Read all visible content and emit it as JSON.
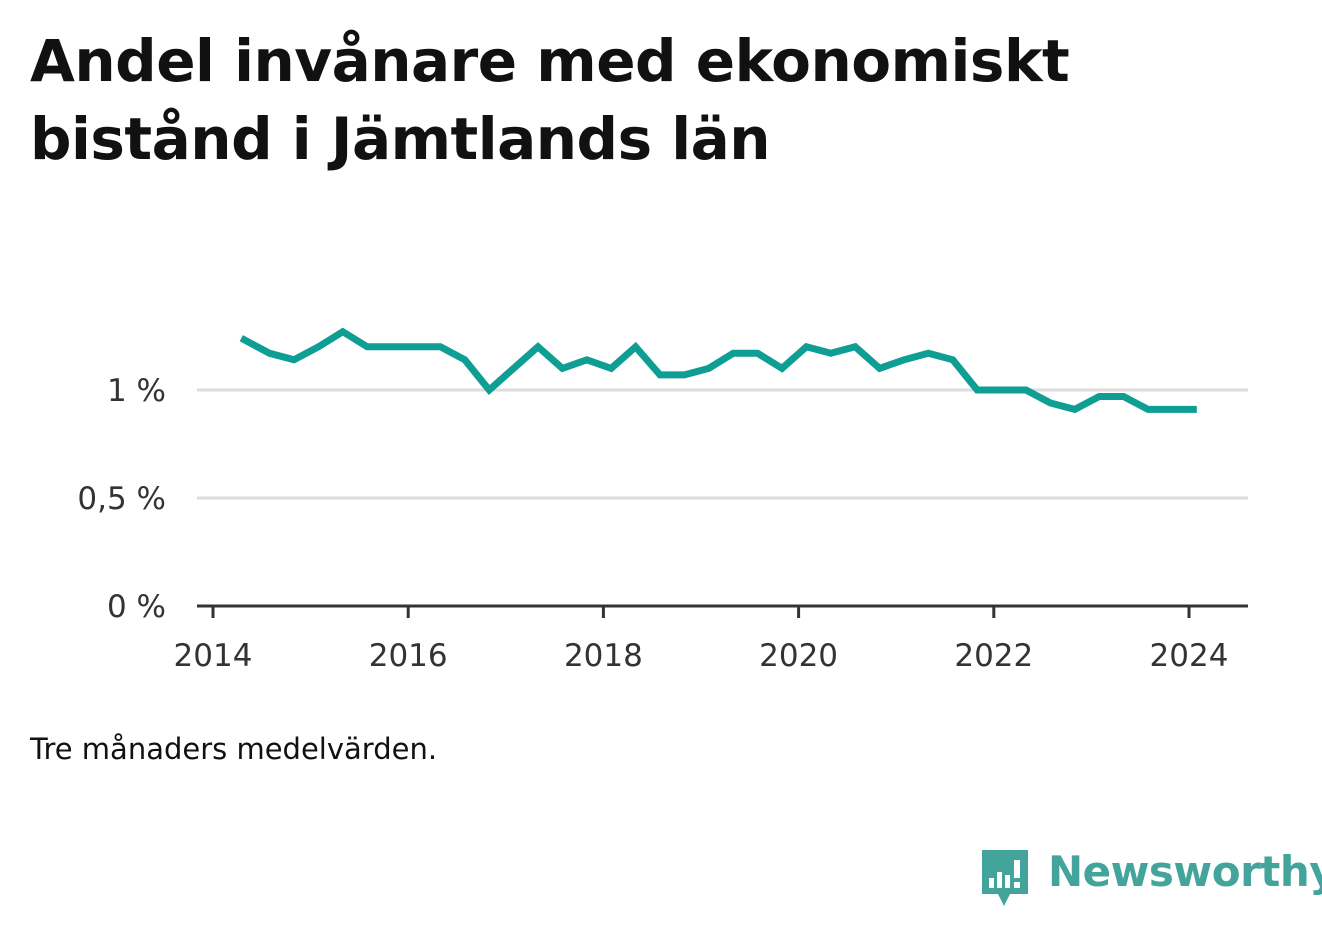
{
  "title": "Andel invånare med ekonomiskt bistånd i Jämtlands län",
  "note": "Tre månaders medelvärden.",
  "brand": {
    "name": "Newsworthy",
    "color": "#42a49a",
    "icon": "bar-chart-speech-bubble-icon"
  },
  "colors": {
    "line": "#0e9e94",
    "grid": "#dddddd",
    "axis": "#333333"
  },
  "chart_data": {
    "type": "line",
    "title": "Andel invånare med ekonomiskt bistånd i Jämtlands län",
    "xlabel": "",
    "ylabel": "",
    "xlim": [
      2014.0,
      2024.6
    ],
    "ylim": [
      0,
      1.35
    ],
    "grid": true,
    "legend": "none",
    "x_ticks": [
      2014,
      2016,
      2018,
      2020,
      2022,
      2024
    ],
    "x_tick_labels": [
      "2014",
      "2016",
      "2018",
      "2020",
      "2022",
      "2024"
    ],
    "y_ticks": [
      0,
      0.5,
      1
    ],
    "y_tick_labels": [
      "0 %",
      "0,5 %",
      "1 %"
    ],
    "series": [
      {
        "x": [
          2014.29,
          2014.58,
          2014.83,
          2015.08,
          2015.33,
          2015.58,
          2015.83,
          2016.08,
          2016.33,
          2016.58,
          2016.83,
          2017.08,
          2017.33,
          2017.58,
          2017.83,
          2018.08,
          2018.33,
          2018.58,
          2018.83,
          2019.08,
          2019.33,
          2019.58,
          2019.83,
          2020.08,
          2020.33,
          2020.58,
          2020.83,
          2021.08,
          2021.33,
          2021.58,
          2021.83,
          2022.08,
          2022.33,
          2022.58,
          2022.83,
          2023.08,
          2023.33,
          2023.58,
          2023.83,
          2024.08
        ],
        "values": [
          1.24,
          1.17,
          1.14,
          1.2,
          1.27,
          1.2,
          1.2,
          1.2,
          1.2,
          1.14,
          1.0,
          1.1,
          1.2,
          1.1,
          1.14,
          1.1,
          1.2,
          1.07,
          1.07,
          1.1,
          1.17,
          1.17,
          1.1,
          1.2,
          1.17,
          1.2,
          1.1,
          1.14,
          1.17,
          1.14,
          1.0,
          1.0,
          1.0,
          0.94,
          0.91,
          0.97,
          0.97,
          0.91,
          0.91,
          0.91
        ]
      }
    ]
  }
}
